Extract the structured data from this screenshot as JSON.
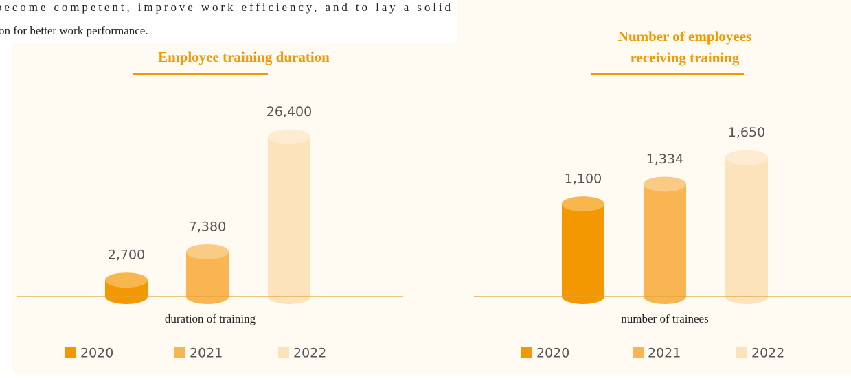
{
  "page_text": [
    "become competent, improve work efficiency, and to lay a solid",
    "on for better work performance."
  ],
  "chart_data": [
    {
      "type": "bar",
      "title": [
        "Employee training duration"
      ],
      "x_label": "duration of training",
      "categories": [
        "2020",
        "2021",
        "2022"
      ],
      "values": [
        2700,
        7380,
        26400
      ],
      "value_labels": [
        "2,700",
        "7,380",
        "26,400"
      ],
      "colors": [
        "#f39800",
        "#f8b551",
        "#fde3bc"
      ],
      "ylim": [
        0,
        32000
      ]
    },
    {
      "type": "bar",
      "title": [
        "Number of employees",
        "receiving training"
      ],
      "x_label": "number of trainees",
      "categories": [
        "2020",
        "2021",
        "2022"
      ],
      "values": [
        1100,
        1334,
        1650
      ],
      "value_labels": [
        "1,100",
        "1,334",
        "1,650"
      ],
      "colors": [
        "#f39800",
        "#f8b551",
        "#fde3bc"
      ],
      "ylim": [
        0,
        2300
      ]
    }
  ]
}
